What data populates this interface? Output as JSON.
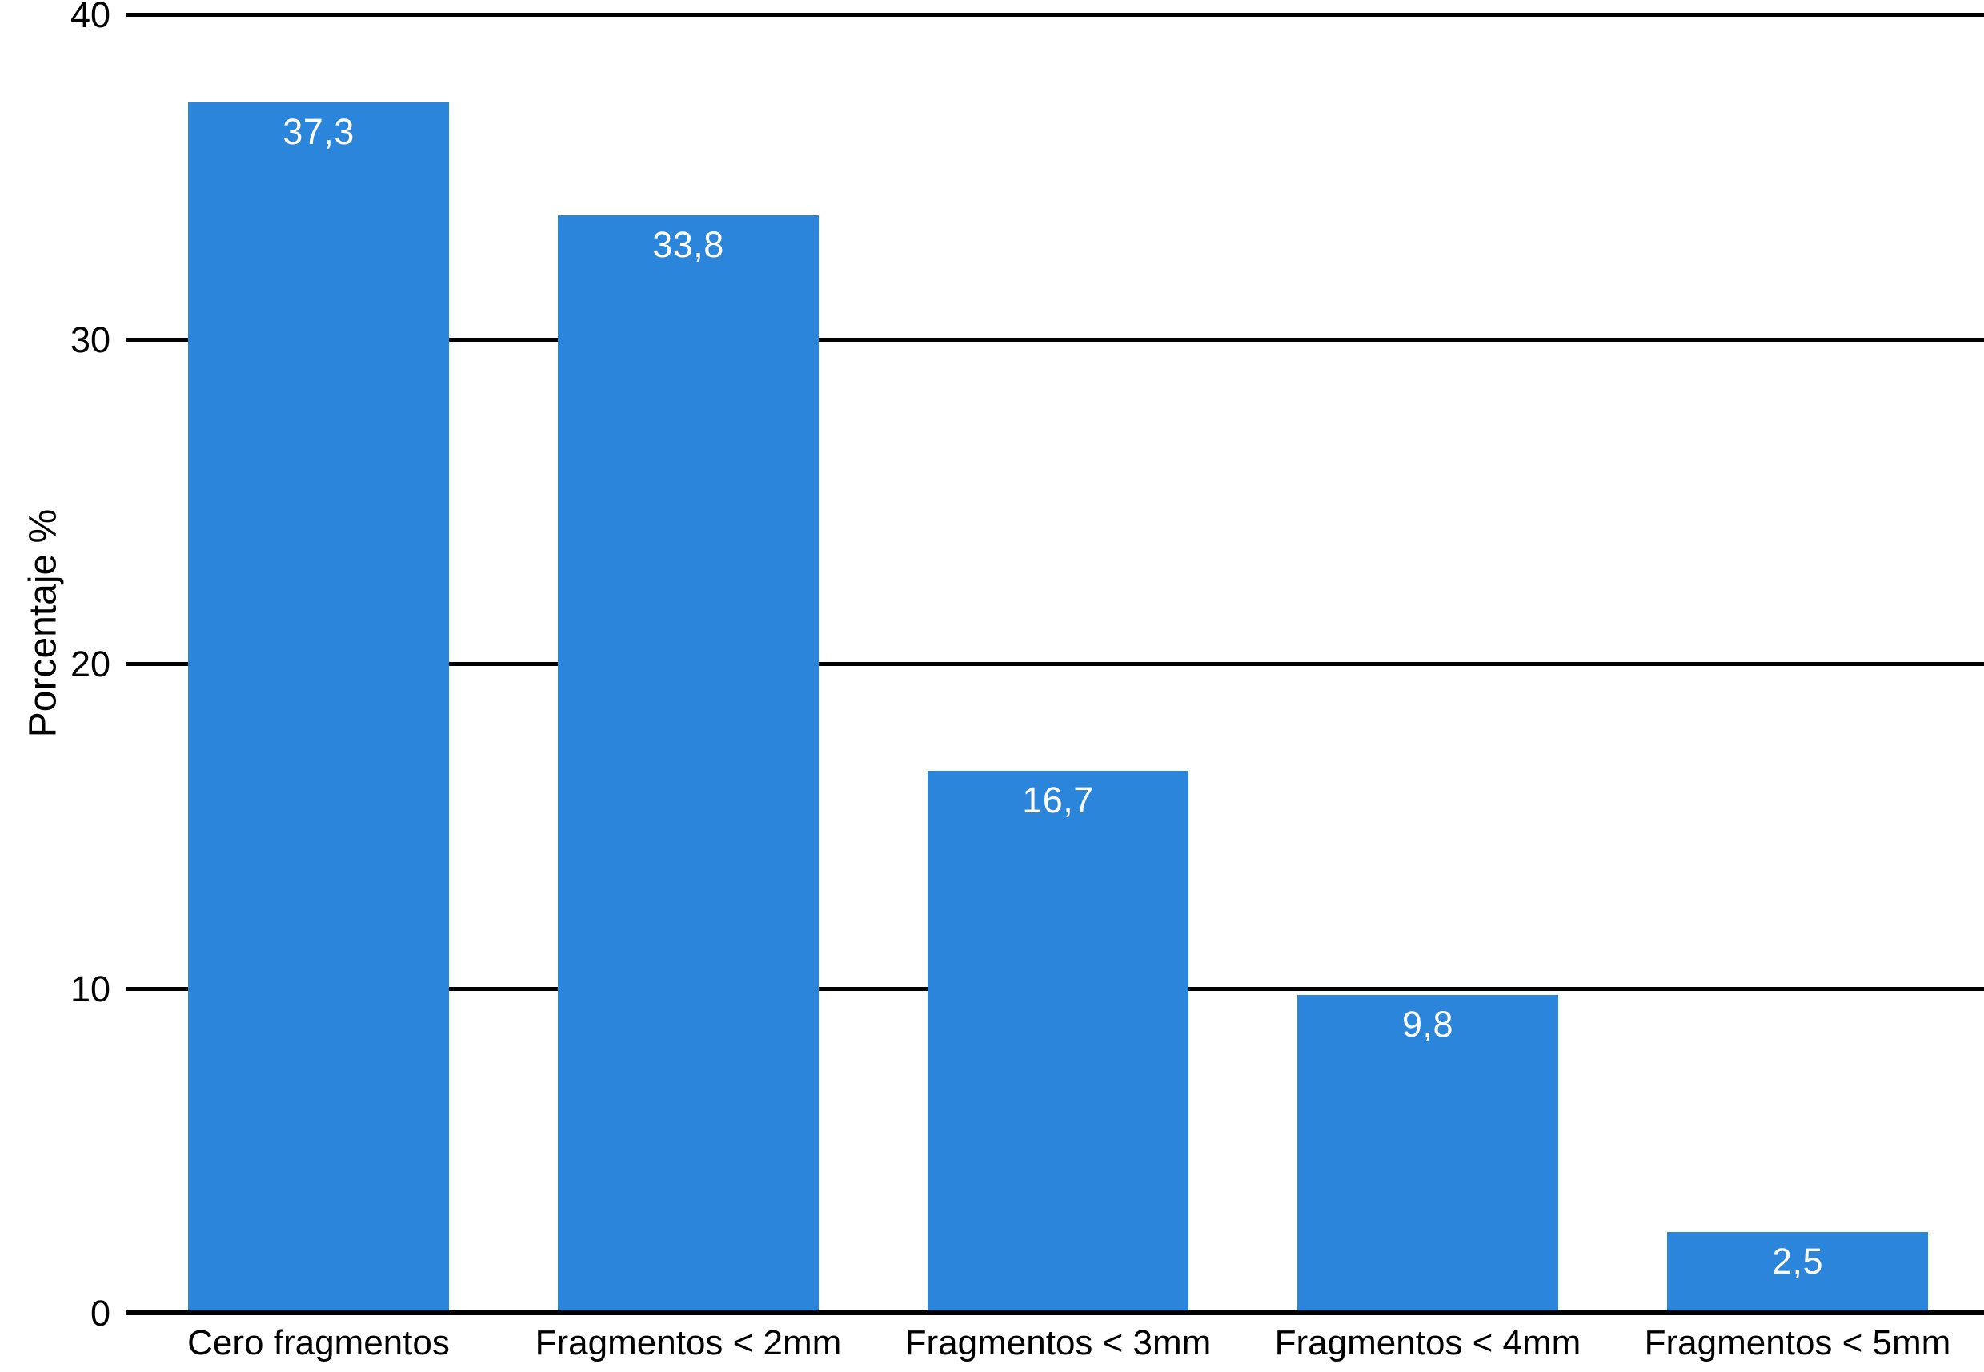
{
  "chart_data": {
    "type": "bar",
    "title": "",
    "categories": [
      "Cero fragmentos",
      "Fragmentos < 2mm",
      "Fragmentos < 3mm",
      "Fragmentos < 4mm",
      "Fragmentos < 5mm"
    ],
    "values": [
      37.3,
      33.8,
      16.7,
      9.8,
      2.5
    ],
    "value_labels": [
      "37,3",
      "33,8",
      "16,7",
      "9,8",
      "2,5"
    ],
    "xlabel": "",
    "ylabel": "Porcentaje %",
    "ylim": [
      0,
      40
    ],
    "yticks": [
      0,
      10,
      20,
      30,
      40
    ],
    "ytick_labels": [
      "0",
      "10",
      "20",
      "30",
      "40"
    ],
    "grid": "horizontal-full-width",
    "legend": "none",
    "colors": {
      "bar": "#2B85DB",
      "bar_value_label": "#FFFFFF",
      "axis_and_grid": "#000000",
      "tick_text": "#000000",
      "background": "#FFFFFF"
    }
  }
}
